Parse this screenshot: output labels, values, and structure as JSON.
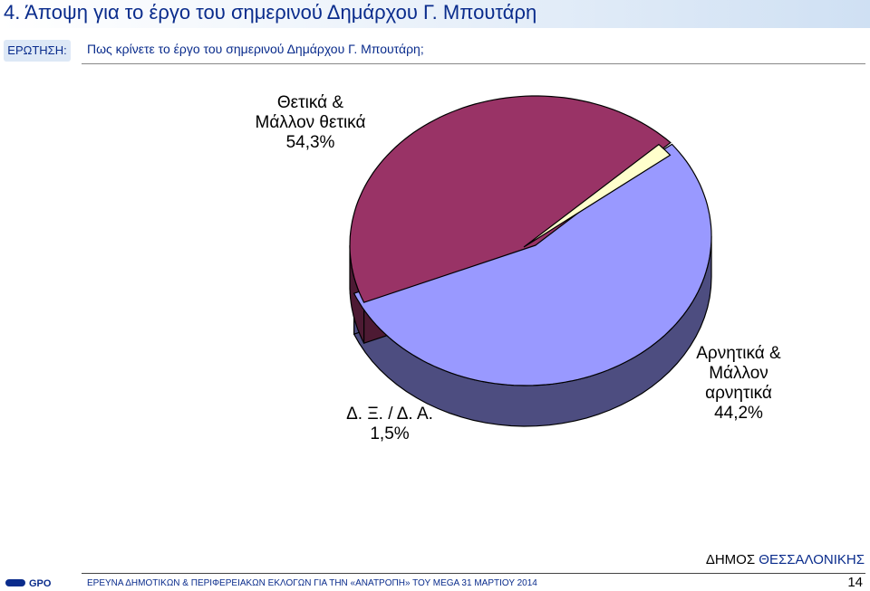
{
  "header": {
    "title": "4.  Άποψη για το έργο του σημερινού Δημάρχου Γ. Μπουτάρη",
    "question_tag": "ΕΡΩΤΗΣΗ:",
    "question_text": "Πως κρίνετε το έργο του σημερινού Δημάρχου Γ. Μπουτάρη;"
  },
  "chart_data": {
    "type": "pie",
    "style": "3d",
    "slices": [
      {
        "label_lines": [
          "Θετικά &",
          "Μάλλον θετικά",
          "54,3%"
        ],
        "value": 54.3,
        "color": "#9999ff",
        "side_color": "#4d4d80"
      },
      {
        "label_lines": [
          "Αρνητικά &",
          "Μάλλον",
          "αρνητικά",
          "44,2%"
        ],
        "value": 44.2,
        "color": "#993366",
        "side_color": "#4d1a33"
      },
      {
        "label_lines": [
          "Δ. Ξ. / Δ. Α.",
          "1,5%"
        ],
        "value": 1.5,
        "color": "#ffffcc",
        "side_color": "#808066"
      }
    ]
  },
  "footer": {
    "municipality_prefix": "ΔΗΜΟΣ",
    "municipality_name": "ΘΕΣΣΑΛΟΝΙΚΗΣ",
    "survey_text": "ΕΡΕΥΝΑ ΔΗΜΟΤΙΚΩΝ & ΠΕΡΙΦΕΡΕΙΑΚΩΝ ΕΚΛΟΓΩΝ ΓΙΑ ΤΗΝ «ΑΝΑΤΡΟΠΗ» ΤΟΥ MEGA  31 ΜΑΡΤΙΟΥ 2014",
    "page_number": "14",
    "logo_text": "GPO",
    "logo_color": "#0a2c8c"
  }
}
